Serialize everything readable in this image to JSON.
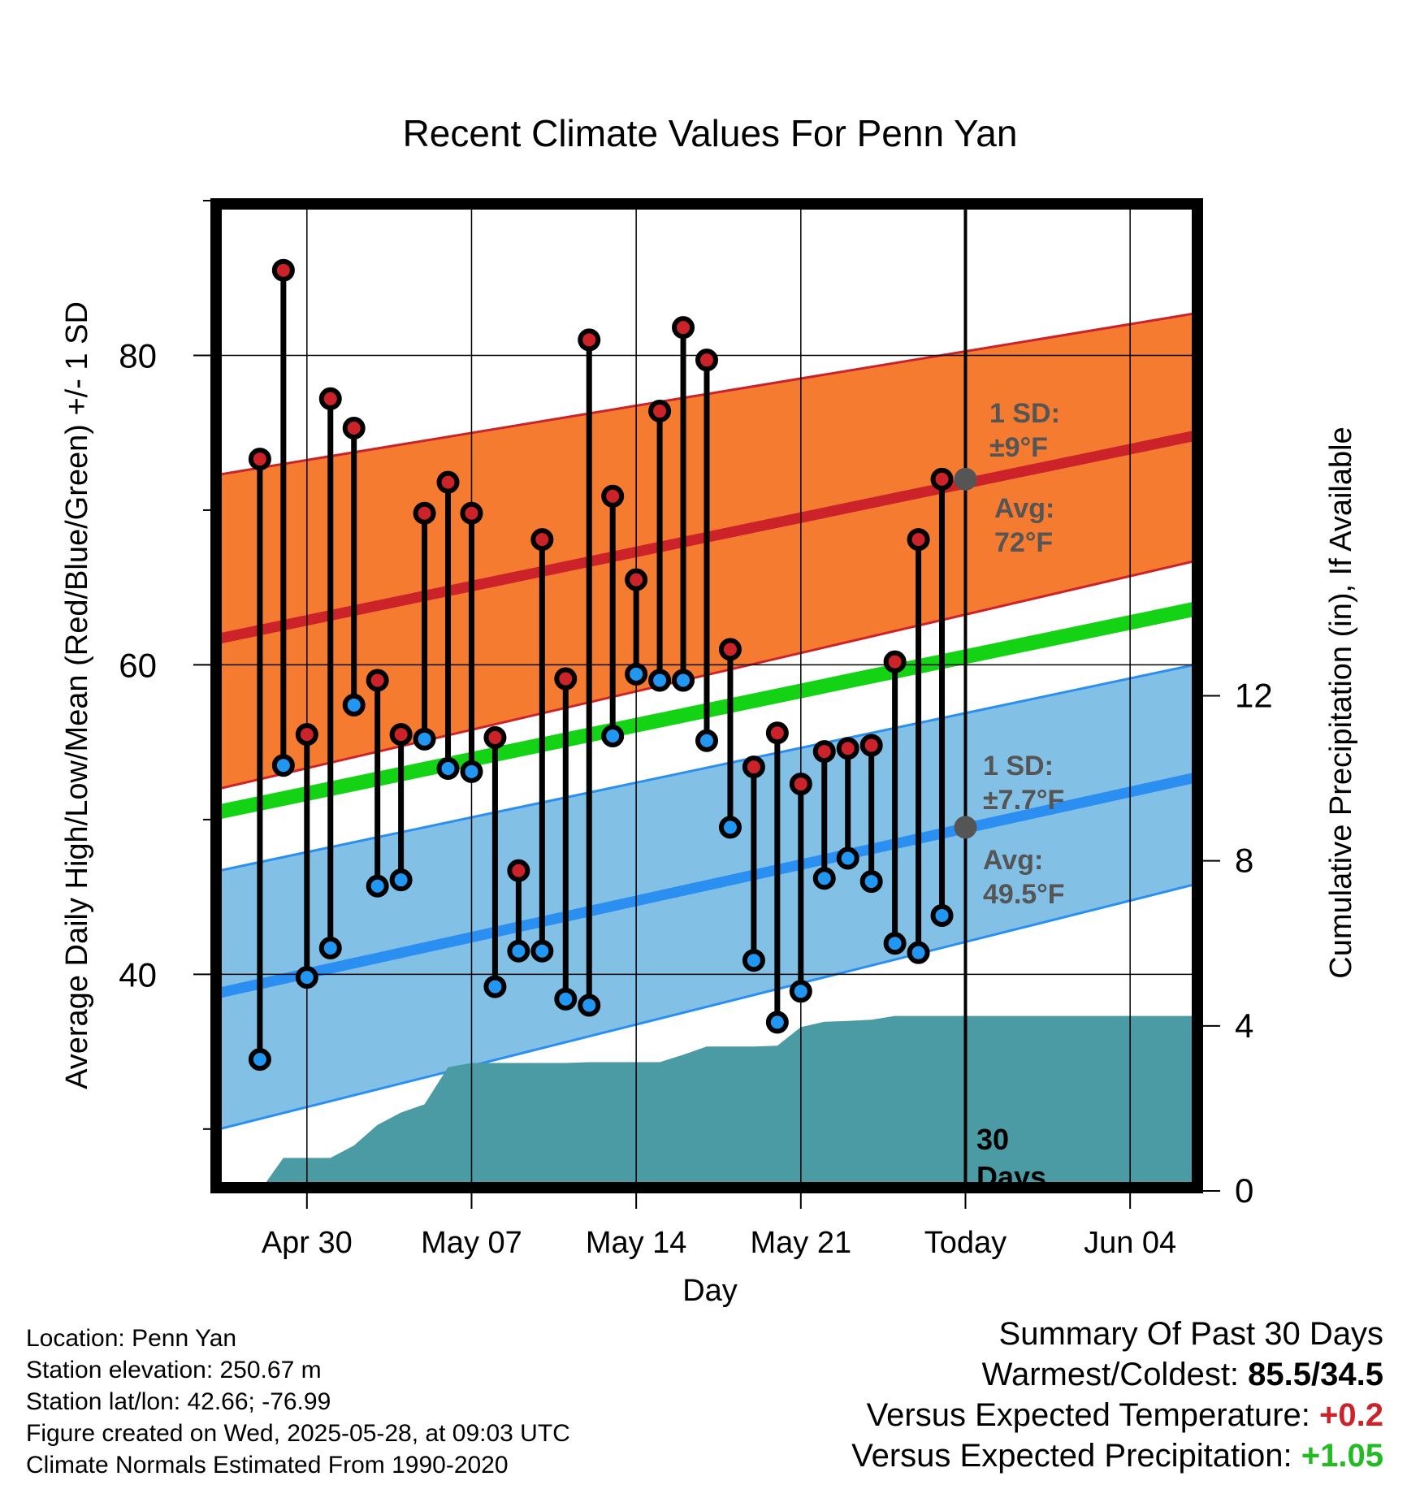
{
  "chart_data": {
    "type": "dot-range",
    "title": "Recent Climate Values For Penn Yan",
    "xlabel": "Day",
    "ylabel": "Average Daily High/Low/Mean (Red/Blue/Green) +/- 1 SD",
    "ylabel_right": "Cumulative Precipitation (in), If Available",
    "ylim": [
      26,
      90
    ],
    "ylim_right": [
      0,
      24
    ],
    "y_ticks": [
      40,
      60,
      80
    ],
    "y_ticks_right": [
      0,
      4,
      8,
      12
    ],
    "x_range": [
      "2025-04-26",
      "2025-06-07"
    ],
    "x_ticks": [
      {
        "date": "2025-04-30",
        "label": "Apr 30"
      },
      {
        "date": "2025-05-07",
        "label": "May 07"
      },
      {
        "date": "2025-05-14",
        "label": "May 14"
      },
      {
        "date": "2025-05-21",
        "label": "May 21"
      },
      {
        "date": "2025-05-28",
        "label": "Today"
      },
      {
        "date": "2025-06-04",
        "label": "Jun 04"
      }
    ],
    "grid": true,
    "today": "2025-05-28",
    "days": [
      {
        "date": "2025-04-28",
        "high": 73.3,
        "low": 34.5
      },
      {
        "date": "2025-04-29",
        "high": 85.5,
        "low": 53.5
      },
      {
        "date": "2025-04-30",
        "high": 55.5,
        "low": 39.8
      },
      {
        "date": "2025-05-01",
        "high": 77.2,
        "low": 41.7
      },
      {
        "date": "2025-05-02",
        "high": 75.3,
        "low": 57.4
      },
      {
        "date": "2025-05-03",
        "high": 59.0,
        "low": 45.7
      },
      {
        "date": "2025-05-04",
        "high": 55.5,
        "low": 46.1
      },
      {
        "date": "2025-05-05",
        "high": 69.8,
        "low": 55.2
      },
      {
        "date": "2025-05-06",
        "high": 71.8,
        "low": 53.3
      },
      {
        "date": "2025-05-07",
        "high": 69.8,
        "low": 53.1
      },
      {
        "date": "2025-05-08",
        "high": 55.3,
        "low": 39.2
      },
      {
        "date": "2025-05-09",
        "high": 46.7,
        "low": 41.5
      },
      {
        "date": "2025-05-10",
        "high": 68.1,
        "low": 41.5
      },
      {
        "date": "2025-05-11",
        "high": 59.1,
        "low": 38.4
      },
      {
        "date": "2025-05-12",
        "high": 81.0,
        "low": 38.0
      },
      {
        "date": "2025-05-13",
        "high": 70.9,
        "low": 55.4
      },
      {
        "date": "2025-05-14",
        "high": 65.5,
        "low": 59.4
      },
      {
        "date": "2025-05-15",
        "high": 76.4,
        "low": 59.0
      },
      {
        "date": "2025-05-16",
        "high": 81.8,
        "low": 59.0
      },
      {
        "date": "2025-05-17",
        "high": 79.7,
        "low": 55.1
      },
      {
        "date": "2025-05-18",
        "high": 61.0,
        "low": 49.5
      },
      {
        "date": "2025-05-19",
        "high": 53.4,
        "low": 40.9
      },
      {
        "date": "2025-05-20",
        "high": 55.6,
        "low": 36.9
      },
      {
        "date": "2025-05-21",
        "high": 52.3,
        "low": 38.9
      },
      {
        "date": "2025-05-22",
        "high": 54.4,
        "low": 46.2
      },
      {
        "date": "2025-05-23",
        "high": 54.6,
        "low": 47.5
      },
      {
        "date": "2025-05-24",
        "high": 54.8,
        "low": 46.0
      },
      {
        "date": "2025-05-25",
        "high": 60.2,
        "low": 42.0
      },
      {
        "date": "2025-05-26",
        "high": 68.1,
        "low": 41.4
      },
      {
        "date": "2025-05-27",
        "high": 72.0,
        "low": 43.8
      }
    ],
    "normals": {
      "high_avg": {
        "start": 61.7,
        "end": 74.8
      },
      "high_band": {
        "lower_start": 52.0,
        "lower_end": 66.7,
        "upper_start": 72.3,
        "upper_end": 82.7
      },
      "mean_avg": {
        "start": 50.5,
        "end": 63.6
      },
      "low_avg": {
        "start": 38.8,
        "end": 52.7
      },
      "low_band": {
        "lower_start": 30.0,
        "lower_end": 45.8,
        "upper_start": 46.7,
        "upper_end": 60.0
      }
    },
    "precip_cumulative": [
      {
        "date": "2025-04-26",
        "value": 0.0
      },
      {
        "date": "2025-04-27",
        "value": 0.0
      },
      {
        "date": "2025-04-28",
        "value": 0.0
      },
      {
        "date": "2025-04-29",
        "value": 0.8
      },
      {
        "date": "2025-04-30",
        "value": 0.8
      },
      {
        "date": "2025-05-01",
        "value": 0.8
      },
      {
        "date": "2025-05-02",
        "value": 1.1
      },
      {
        "date": "2025-05-03",
        "value": 1.6
      },
      {
        "date": "2025-05-04",
        "value": 1.9
      },
      {
        "date": "2025-05-05",
        "value": 2.1
      },
      {
        "date": "2025-05-06",
        "value": 3.0
      },
      {
        "date": "2025-05-07",
        "value": 3.1
      },
      {
        "date": "2025-05-08",
        "value": 3.1
      },
      {
        "date": "2025-05-09",
        "value": 3.1
      },
      {
        "date": "2025-05-10",
        "value": 3.1
      },
      {
        "date": "2025-05-11",
        "value": 3.1
      },
      {
        "date": "2025-05-12",
        "value": 3.12
      },
      {
        "date": "2025-05-13",
        "value": 3.12
      },
      {
        "date": "2025-05-14",
        "value": 3.12
      },
      {
        "date": "2025-05-15",
        "value": 3.12
      },
      {
        "date": "2025-05-16",
        "value": 3.3
      },
      {
        "date": "2025-05-17",
        "value": 3.5
      },
      {
        "date": "2025-05-18",
        "value": 3.5
      },
      {
        "date": "2025-05-19",
        "value": 3.5
      },
      {
        "date": "2025-05-20",
        "value": 3.52
      },
      {
        "date": "2025-05-21",
        "value": 3.97
      },
      {
        "date": "2025-05-22",
        "value": 4.1
      },
      {
        "date": "2025-05-23",
        "value": 4.12
      },
      {
        "date": "2025-05-24",
        "value": 4.15
      },
      {
        "date": "2025-05-25",
        "value": 4.24
      },
      {
        "date": "2025-05-26",
        "value": 4.24
      },
      {
        "date": "2025-05-27",
        "value": 4.24
      },
      {
        "date": "2025-05-28",
        "value": 4.24
      },
      {
        "date": "2025-06-07",
        "value": 4.24
      }
    ],
    "annotations": {
      "high_sd": [
        "1 SD:",
        "±9°F"
      ],
      "high_avg": [
        "Avg:",
        "72°F"
      ],
      "low_sd": [
        "1 SD:",
        "±7.7°F"
      ],
      "low_avg": [
        "Avg:",
        "49.5°F"
      ],
      "period": [
        "30",
        "Days"
      ],
      "today_high_avg": 72,
      "today_low_avg": 49.5
    },
    "colors": {
      "high_band": "#f47b30",
      "high_line": "#cc2229",
      "low_band": "#82c0e6",
      "low_line": "#2b8ff2",
      "mean_line": "#14d214",
      "precip": "#4a9ba3",
      "high_dot": "#cc2229",
      "low_dot": "#2196f3",
      "today_dot": "#555555",
      "annotation_text": "#555555"
    }
  },
  "metadata": {
    "lines": [
      "Location: Penn Yan",
      "Station elevation: 250.67 m",
      "Station lat/lon: 42.66; -76.99",
      "Figure created on Wed, 2025-05-28, at 09:03 UTC",
      "Climate Normals Estimated From 1990-2020"
    ]
  },
  "summary": {
    "heading": "Summary Of Past 30 Days",
    "warm_cold_label": "Warmest/Coldest:",
    "warm_cold_value": "85.5/34.5",
    "temp_label": "Versus Expected Temperature:",
    "temp_value": "+0.2",
    "temp_color": "#cc2229",
    "precip_label": "Versus Expected Precipitation:",
    "precip_value": "+1.05",
    "precip_color": "#22bb22"
  }
}
